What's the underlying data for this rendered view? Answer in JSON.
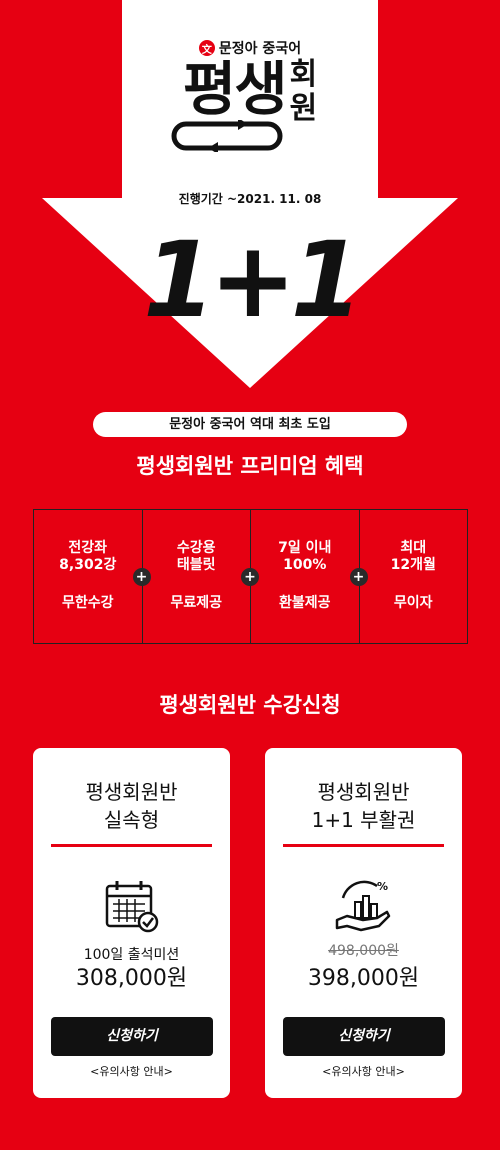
{
  "hero": {
    "brand_logo_char": "文",
    "brand": "문정아 중국어",
    "title_main": "평생",
    "title_side": [
      "회",
      "원"
    ],
    "period": "진행기간 ~2021. 11. 08",
    "big_text": "1+1"
  },
  "intro": {
    "pill": "문정아 중국어 역대 최초 도입",
    "heading": "평생회원반 프리미엄 혜택"
  },
  "benefits": [
    {
      "top": "전강좌\n8,302강",
      "bottom": "무한수강"
    },
    {
      "top": "수강용\n태블릿",
      "bottom": "무료제공"
    },
    {
      "top": "7일 이내\n100%",
      "bottom": "환불제공"
    },
    {
      "top": "최대\n12개월",
      "bottom": "무이자"
    }
  ],
  "plus_symbol": "+",
  "signup": {
    "heading": "평생회원반 수강신청"
  },
  "cards": [
    {
      "title_line1": "평생회원반",
      "title_line2": "실속형",
      "icon": "calendar-check-icon",
      "sub": "100일 출석미션",
      "price": "308,000원",
      "button": "신청하기",
      "notice": "<유의사항 안내>"
    },
    {
      "title_line1": "평생회원반",
      "title_line2": "1+1 부활권",
      "icon": "growth-chart-hand-icon",
      "strike_price": "498,000원",
      "price": "398,000원",
      "button": "신청하기",
      "notice": "<유의사항 안내>"
    }
  ],
  "colors": {
    "background": "#e60012",
    "accent": "#e60012",
    "dark": "#111111"
  }
}
